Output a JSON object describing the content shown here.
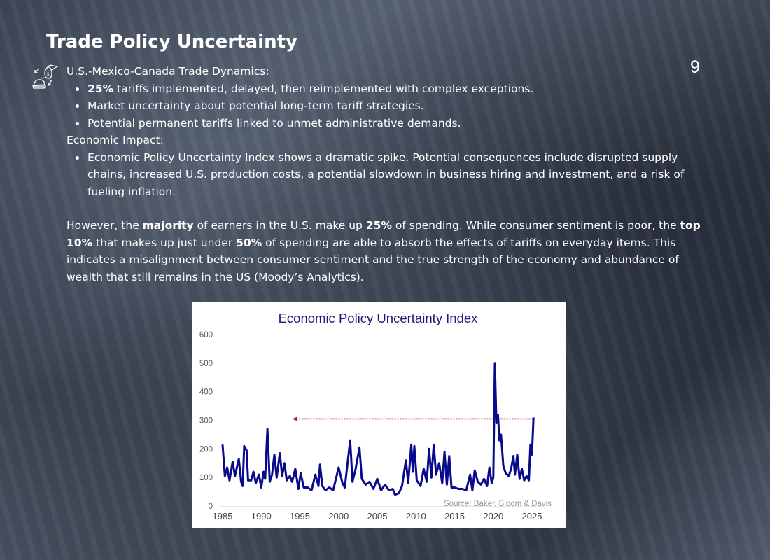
{
  "slide": {
    "title": "Trade Policy Uncertainty",
    "page_number": "9",
    "icon": "money-bag-cycle-icon"
  },
  "section1": {
    "heading": "U.S.-Mexico-Canada Trade Dynamics:",
    "bullets": [
      {
        "bold": "25%",
        "text": " tariffs implemented, delayed, then reimplemented with complex exceptions."
      },
      {
        "text": "Market uncertainty about potential long-term tariff strategies."
      },
      {
        "text": "Potential permanent tariffs linked to unmet administrative demands."
      }
    ]
  },
  "section2": {
    "heading": "Economic Impact:",
    "bullets": [
      {
        "text": "Economic Policy Uncertainty Index shows a dramatic spike. Potential consequences include disrupted supply chains, increased U.S. production costs, a potential slowdown in business hiring and investment, and a risk of fueling inflation."
      }
    ]
  },
  "paragraph": {
    "segments": [
      {
        "t": "However, the "
      },
      {
        "b": "majority"
      },
      {
        "t": " of earners in the U.S. make up "
      },
      {
        "b": "25%"
      },
      {
        "t": " of spending. While consumer sentiment is poor, the "
      },
      {
        "b": "top 10%"
      },
      {
        "t": " that makes up just under "
      },
      {
        "b": "50%"
      },
      {
        "t": " of spending are able to absorb the effects of tariffs on everyday items. This indicates a misalignment between consumer sentiment and the true strength of the economy and abundance of wealth that still remains in the US (Moody’s Analytics)."
      }
    ]
  },
  "chart_data": {
    "type": "line",
    "title": "Economic Policy Uncertainty Index",
    "source": "Source: Baker, Bloom & Davis",
    "xlabel": "",
    "ylabel": "",
    "xlim": [
      1985,
      2025
    ],
    "ylim": [
      0,
      600
    ],
    "xticks": [
      "1985",
      "1990",
      "1995",
      "2000",
      "2005",
      "2010",
      "2015",
      "2020",
      "2025"
    ],
    "yticks": [
      "0",
      "100",
      "200",
      "300",
      "400",
      "500",
      "600"
    ],
    "line_color": "#0a0a8c",
    "reference_color": "#b22222",
    "reference_line": {
      "value": 305,
      "from": 1994,
      "to": 2025.3,
      "style": "dotted-arrow-left"
    },
    "series": [
      {
        "name": "EPU Index",
        "points": [
          [
            1985,
            215
          ],
          [
            1985.3,
            105
          ],
          [
            1985.6,
            135
          ],
          [
            1985.9,
            90
          ],
          [
            1986.3,
            155
          ],
          [
            1986.6,
            105
          ],
          [
            1987.1,
            165
          ],
          [
            1987.4,
            85
          ],
          [
            1987.6,
            70
          ],
          [
            1987.8,
            210
          ],
          [
            1988.1,
            195
          ],
          [
            1988.3,
            90
          ],
          [
            1988.7,
            90
          ],
          [
            1989,
            120
          ],
          [
            1989.3,
            80
          ],
          [
            1989.7,
            110
          ],
          [
            1990,
            65
          ],
          [
            1990.3,
            120
          ],
          [
            1990.5,
            95
          ],
          [
            1990.8,
            270
          ],
          [
            1991.1,
            85
          ],
          [
            1991.4,
            110
          ],
          [
            1991.7,
            180
          ],
          [
            1992,
            100
          ],
          [
            1992.4,
            185
          ],
          [
            1992.7,
            105
          ],
          [
            1993,
            150
          ],
          [
            1993.3,
            90
          ],
          [
            1993.7,
            105
          ],
          [
            1994,
            85
          ],
          [
            1994.4,
            130
          ],
          [
            1994.8,
            60
          ],
          [
            1995.1,
            115
          ],
          [
            1995.5,
            65
          ],
          [
            1996,
            65
          ],
          [
            1996.5,
            55
          ],
          [
            1997,
            110
          ],
          [
            1997.4,
            70
          ],
          [
            1997.6,
            145
          ],
          [
            1997.9,
            70
          ],
          [
            1998.3,
            55
          ],
          [
            1998.8,
            65
          ],
          [
            1999.3,
            55
          ],
          [
            2000,
            135
          ],
          [
            2000.5,
            80
          ],
          [
            2000.8,
            65
          ],
          [
            2001.5,
            230
          ],
          [
            2001.8,
            85
          ],
          [
            2002.2,
            130
          ],
          [
            2002.7,
            205
          ],
          [
            2003,
            95
          ],
          [
            2003.5,
            75
          ],
          [
            2004,
            85
          ],
          [
            2004.5,
            60
          ],
          [
            2005,
            95
          ],
          [
            2005.5,
            55
          ],
          [
            2006,
            75
          ],
          [
            2006.5,
            55
          ],
          [
            2007,
            60
          ],
          [
            2007.3,
            40
          ],
          [
            2007.8,
            45
          ],
          [
            2008.2,
            70
          ],
          [
            2008.7,
            160
          ],
          [
            2009,
            80
          ],
          [
            2009.4,
            215
          ],
          [
            2009.6,
            120
          ],
          [
            2009.8,
            210
          ],
          [
            2010.1,
            90
          ],
          [
            2010.6,
            70
          ],
          [
            2011,
            130
          ],
          [
            2011.4,
            85
          ],
          [
            2011.7,
            200
          ],
          [
            2012,
            100
          ],
          [
            2012.3,
            215
          ],
          [
            2012.6,
            110
          ],
          [
            2013,
            150
          ],
          [
            2013.4,
            80
          ],
          [
            2013.7,
            190
          ],
          [
            2014,
            75
          ],
          [
            2014.3,
            175
          ],
          [
            2014.6,
            65
          ],
          [
            2015,
            65
          ],
          [
            2015.5,
            60
          ],
          [
            2016,
            60
          ],
          [
            2016.5,
            55
          ],
          [
            2017,
            110
          ],
          [
            2017.3,
            55
          ],
          [
            2017.6,
            125
          ],
          [
            2018,
            85
          ],
          [
            2018.4,
            75
          ],
          [
            2018.8,
            95
          ],
          [
            2019.2,
            70
          ],
          [
            2019.5,
            135
          ],
          [
            2019.8,
            80
          ],
          [
            2020,
            100
          ],
          [
            2020.2,
            500
          ],
          [
            2020.4,
            290
          ],
          [
            2020.6,
            320
          ],
          [
            2020.8,
            230
          ],
          [
            2021,
            250
          ],
          [
            2021.3,
            140
          ],
          [
            2021.6,
            115
          ],
          [
            2022,
            105
          ],
          [
            2022.3,
            130
          ],
          [
            2022.6,
            175
          ],
          [
            2022.8,
            110
          ],
          [
            2023.1,
            180
          ],
          [
            2023.4,
            95
          ],
          [
            2023.7,
            130
          ],
          [
            2024,
            90
          ],
          [
            2024.3,
            105
          ],
          [
            2024.6,
            90
          ],
          [
            2024.8,
            215
          ],
          [
            2025,
            180
          ],
          [
            2025.2,
            310
          ]
        ]
      }
    ]
  }
}
